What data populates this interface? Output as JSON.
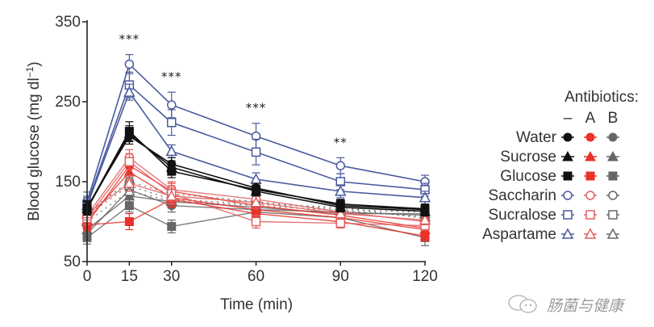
{
  "chart_data": {
    "type": "line",
    "title": "",
    "xlabel": "Time (min)",
    "ylabel": "Blood glucose (mg dl⁻¹)",
    "ylabel_main": "Blood glucose (mg dl",
    "ylabel_sup": "−1",
    "ylabel_close": ")",
    "xlim": [
      0,
      120
    ],
    "ylim": [
      50,
      350
    ],
    "x": [
      0,
      15,
      30,
      60,
      90,
      120
    ],
    "x_tick_labels": [
      "0",
      "15",
      "30",
      "60",
      "90",
      "120"
    ],
    "y_ticks": [
      50,
      150,
      250,
      350
    ],
    "y_tick_labels": [
      "50",
      "150",
      "250",
      "350"
    ],
    "grid": false,
    "significance": [
      {
        "x": 15,
        "label": "***"
      },
      {
        "x": 30,
        "label": "***"
      },
      {
        "x": 60,
        "label": "***"
      },
      {
        "x": 90,
        "label": "**"
      }
    ],
    "legend": {
      "title": "Antibiotics:",
      "columns": [
        "–",
        "A",
        "B"
      ],
      "rows": [
        "Water",
        "Sucrose",
        "Glucose",
        "Saccharin",
        "Sucralose",
        "Aspartame"
      ],
      "placement": "right"
    },
    "colors": {
      "none_sugar": "#111111",
      "none_sweetener": "#4a5a9e",
      "A": "#e8322a",
      "A_open": "#e06060",
      "B": "#666666"
    },
    "series": [
      {
        "name": "Saccharin –",
        "group": "Saccharin",
        "antibiotic": "–",
        "marker": "circle-open",
        "values": [
          125,
          297,
          246,
          207,
          170,
          150
        ],
        "err": [
          12,
          12,
          16,
          16,
          10,
          8
        ]
      },
      {
        "name": "Sucralose –",
        "group": "Sucralose",
        "antibiotic": "–",
        "marker": "square-open",
        "values": [
          122,
          271,
          224,
          187,
          150,
          140
        ],
        "err": [
          10,
          16,
          16,
          16,
          10,
          8
        ]
      },
      {
        "name": "Aspartame –",
        "group": "Aspartame",
        "antibiotic": "–",
        "marker": "triangle-open",
        "values": [
          120,
          262,
          188,
          153,
          138,
          130
        ],
        "err": [
          10,
          10,
          8,
          8,
          8,
          8
        ]
      },
      {
        "name": "Water –",
        "group": "Water",
        "antibiotic": "–",
        "marker": "circle-filled",
        "values": [
          118,
          207,
          172,
          142,
          120,
          115
        ],
        "err": [
          8,
          10,
          8,
          6,
          6,
          6
        ]
      },
      {
        "name": "Sucrose –",
        "group": "Sucrose",
        "antibiotic": "–",
        "marker": "triangle-filled",
        "values": [
          116,
          210,
          168,
          138,
          118,
          113
        ],
        "err": [
          8,
          10,
          8,
          6,
          6,
          6
        ]
      },
      {
        "name": "Glucose –",
        "group": "Glucose",
        "antibiotic": "–",
        "marker": "square-filled",
        "values": [
          117,
          213,
          163,
          140,
          122,
          116
        ],
        "err": [
          8,
          12,
          8,
          6,
          6,
          6
        ]
      },
      {
        "name": "Water A",
        "group": "Water",
        "antibiotic": "A",
        "marker": "circle-filled",
        "values": [
          98,
          170,
          138,
          120,
          108,
          92
        ],
        "err": [
          8,
          10,
          10,
          8,
          6,
          6
        ]
      },
      {
        "name": "Sucrose A",
        "group": "Sucrose",
        "antibiotic": "A",
        "marker": "triangle-filled",
        "values": [
          102,
          162,
          130,
          115,
          105,
          90
        ],
        "err": [
          8,
          10,
          10,
          8,
          6,
          6
        ]
      },
      {
        "name": "Glucose A",
        "group": "Glucose",
        "antibiotic": "A",
        "marker": "square-filled",
        "values": [
          96,
          100,
          128,
          110,
          100,
          82
        ],
        "err": [
          8,
          10,
          10,
          8,
          6,
          6
        ]
      },
      {
        "name": "Saccharin A",
        "group": "Saccharin",
        "antibiotic": "A",
        "marker": "circle-open",
        "values": [
          108,
          180,
          140,
          128,
          112,
          100
        ],
        "err": [
          8,
          10,
          10,
          8,
          6,
          6
        ]
      },
      {
        "name": "Sucralose A",
        "group": "Sucralose",
        "antibiotic": "A",
        "marker": "square-open",
        "values": [
          104,
          175,
          135,
          100,
          98,
          95
        ],
        "err": [
          8,
          10,
          10,
          8,
          6,
          6
        ]
      },
      {
        "name": "Aspartame A",
        "group": "Aspartame",
        "antibiotic": "A",
        "marker": "triangle-open",
        "values": [
          110,
          148,
          132,
          124,
          110,
          102
        ],
        "err": [
          8,
          10,
          10,
          8,
          6,
          6
        ]
      },
      {
        "name": "Water B",
        "group": "Water",
        "antibiotic": "B",
        "marker": "circle-filled",
        "values": [
          85,
          140,
          120,
          115,
          112,
          108
        ],
        "err": [
          8,
          10,
          8,
          6,
          6,
          6
        ]
      },
      {
        "name": "Sucrose B",
        "group": "Sucrose",
        "antibiotic": "B",
        "marker": "triangle-filled",
        "values": [
          90,
          132,
          125,
          118,
          110,
          110
        ],
        "err": [
          8,
          10,
          8,
          6,
          6,
          6
        ]
      },
      {
        "name": "Glucose B",
        "group": "Glucose",
        "antibiotic": "B",
        "marker": "square-filled",
        "values": [
          80,
          120,
          94,
          112,
          105,
          80
        ],
        "err": [
          8,
          8,
          8,
          6,
          6,
          10
        ]
      },
      {
        "name": "Saccharin B",
        "group": "Saccharin",
        "antibiotic": "B",
        "marker": "circle-open",
        "values": [
          112,
          150,
          135,
          125,
          115,
          112
        ],
        "err": [
          8,
          10,
          8,
          6,
          6,
          6
        ]
      },
      {
        "name": "Sucralose B",
        "group": "Sucralose",
        "antibiotic": "B",
        "marker": "square-open",
        "values": [
          108,
          145,
          128,
          122,
          118,
          104
        ],
        "err": [
          8,
          10,
          8,
          6,
          6,
          6
        ]
      },
      {
        "name": "Aspartame B",
        "group": "Aspartame",
        "antibiotic": "B",
        "marker": "triangle-open",
        "values": [
          100,
          138,
          126,
          120,
          114,
          106
        ],
        "err": [
          8,
          10,
          8,
          6,
          6,
          6
        ]
      }
    ]
  },
  "watermark": {
    "text": "肠菌与健康",
    "icon": "wechat-icon"
  }
}
